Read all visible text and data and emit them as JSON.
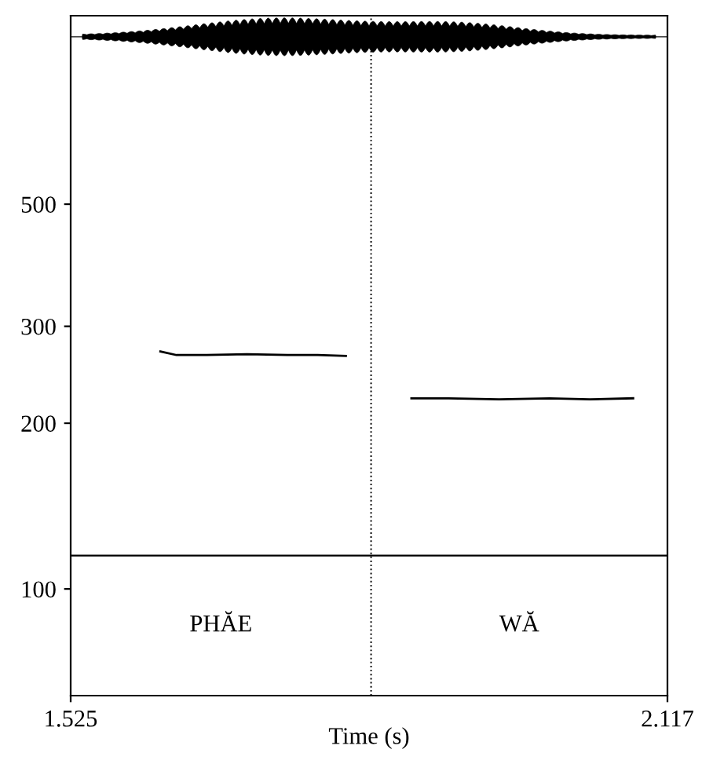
{
  "chart_data": {
    "type": "line",
    "xlabel": "Time (s)",
    "series": [
      {
        "color": "#000000",
        "x": [
          1.614,
          1.63,
          1.66,
          1.7,
          1.74,
          1.77,
          1.798
        ],
        "values": [
          270,
          266,
          266,
          267,
          266,
          266,
          265
        ]
      },
      {
        "color": "#000000",
        "x": [
          1.863,
          1.9,
          1.95,
          2.0,
          2.04,
          2.083
        ],
        "values": [
          222,
          222,
          221,
          222,
          221,
          222
        ]
      }
    ],
    "xlim": [
      1.525,
      2.117
    ],
    "xticks": [
      1.525,
      2.117
    ],
    "ylim": [
      64,
      1100
    ],
    "yticks": [
      100,
      200,
      300,
      500
    ],
    "log": true,
    "ref_lines": [
      {
        "axis": "x",
        "value": 1.823,
        "line_style": "dotted"
      },
      {
        "axis": "y",
        "value": 115,
        "line_style": "solid"
      }
    ],
    "annotations": [
      "PHĂE",
      "WĂ"
    ],
    "grid": false,
    "marker": "none",
    "line_style": "solid"
  }
}
